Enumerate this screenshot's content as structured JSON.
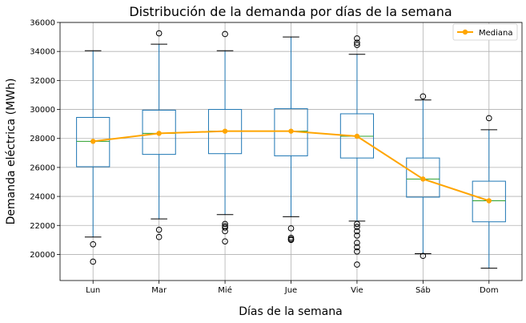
{
  "chart_data": {
    "type": "box",
    "title": "Distribución de la demanda por días de la semana",
    "xlabel": "Días de la semana",
    "ylabel": "Demanda eléctrica (MWh)",
    "ylim": [
      18200,
      36000
    ],
    "yticks": [
      20000,
      22000,
      24000,
      26000,
      28000,
      30000,
      32000,
      34000,
      36000
    ],
    "grid": true,
    "legend": {
      "placement": "top-right",
      "label": "Mediana"
    },
    "colors": {
      "box": "#1f77b4",
      "median": "#2ca02c",
      "median_line": "#ffa500",
      "grid": "#b0b0b0"
    },
    "categories": [
      "Lun",
      "Mar",
      "Mié",
      "Jue",
      "Vie",
      "Sáb",
      "Dom"
    ],
    "boxes": [
      {
        "whislo": 21200,
        "q1": 26050,
        "med": 27800,
        "q3": 29450,
        "whishi": 34050,
        "fliers": [
          20700,
          19500
        ]
      },
      {
        "whislo": 22450,
        "q1": 26900,
        "med": 28350,
        "q3": 29950,
        "whishi": 34500,
        "fliers": [
          35250,
          21700,
          21200
        ]
      },
      {
        "whislo": 22750,
        "q1": 26950,
        "med": 28500,
        "q3": 30000,
        "whishi": 34050,
        "fliers": [
          35200,
          22100,
          21950,
          21850,
          21600,
          20900
        ]
      },
      {
        "whislo": 22600,
        "q1": 26800,
        "med": 28500,
        "q3": 30050,
        "whishi": 35000,
        "fliers": [
          21800,
          21150,
          21050,
          21000
        ]
      },
      {
        "whislo": 22300,
        "q1": 26650,
        "med": 28150,
        "q3": 29700,
        "whishi": 33800,
        "fliers": [
          34900,
          34600,
          34450,
          22100,
          21900,
          21600,
          21300,
          20800,
          20500,
          20200,
          19300
        ]
      },
      {
        "whislo": 20050,
        "q1": 23950,
        "med": 25200,
        "q3": 26650,
        "whishi": 30650,
        "fliers": [
          30900,
          19900
        ]
      },
      {
        "whislo": 19050,
        "q1": 22250,
        "med": 23700,
        "q3": 25050,
        "whishi": 28600,
        "fliers": [
          29400
        ]
      }
    ],
    "series": [
      {
        "name": "Mediana",
        "values": [
          27800,
          28350,
          28500,
          28500,
          28150,
          25200,
          23700
        ]
      }
    ]
  }
}
